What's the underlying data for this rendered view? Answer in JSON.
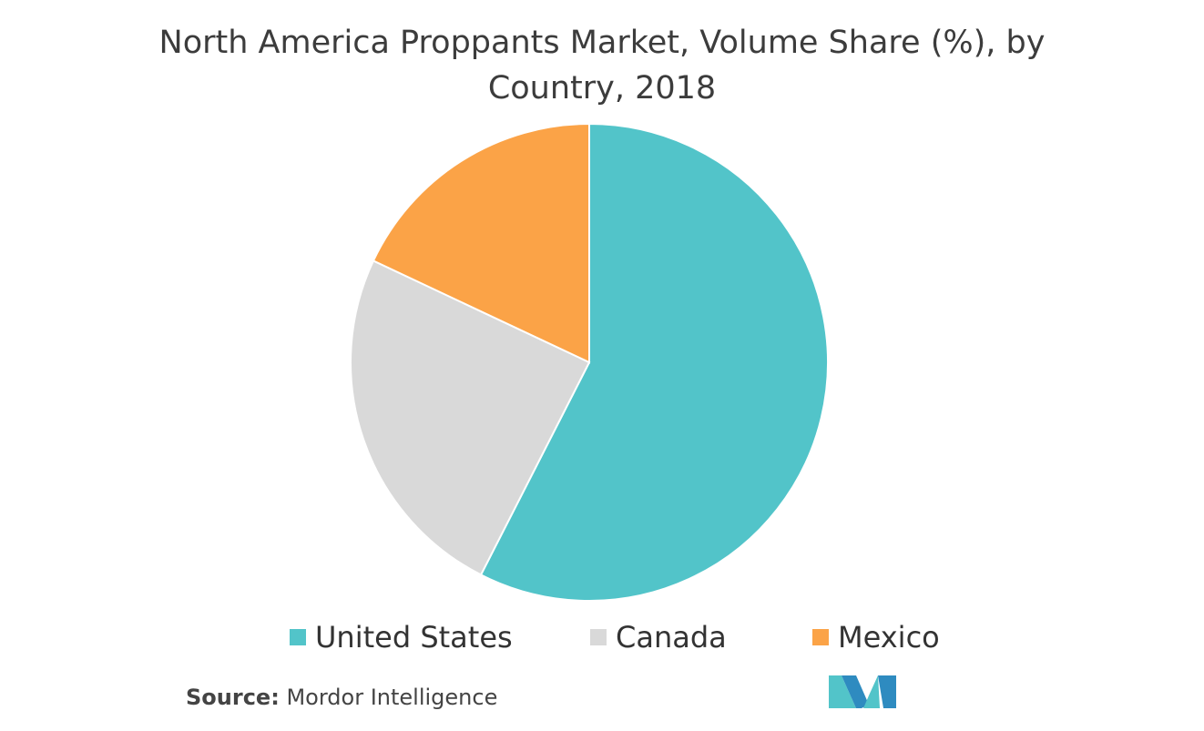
{
  "title_line1": "North America Proppants Market, Volume Share (%), by",
  "title_line2": "Country, 2018",
  "chart_data": {
    "type": "pie",
    "title": "North America Proppants Market, Volume Share (%), by Country, 2018",
    "categories": [
      "United States",
      "Canada",
      "Mexico"
    ],
    "values": [
      57.5,
      24.5,
      18.0
    ],
    "colors": [
      "#52c4c9",
      "#d9d9d9",
      "#fba347"
    ],
    "start_angle_deg": 0,
    "direction": "clockwise",
    "legend": "bottom"
  },
  "legend": {
    "items": [
      {
        "label": "United States",
        "color": "#52c4c9"
      },
      {
        "label": "Canada",
        "color": "#d9d9d9"
      },
      {
        "label": "Mexico",
        "color": "#fba347"
      }
    ]
  },
  "source": {
    "label": "Source:",
    "text": "Mordor Intelligence"
  },
  "logo": {
    "icon": "mordor-intelligence-logo-icon",
    "colors": [
      "#2e8bc0",
      "#52c4c9"
    ]
  }
}
